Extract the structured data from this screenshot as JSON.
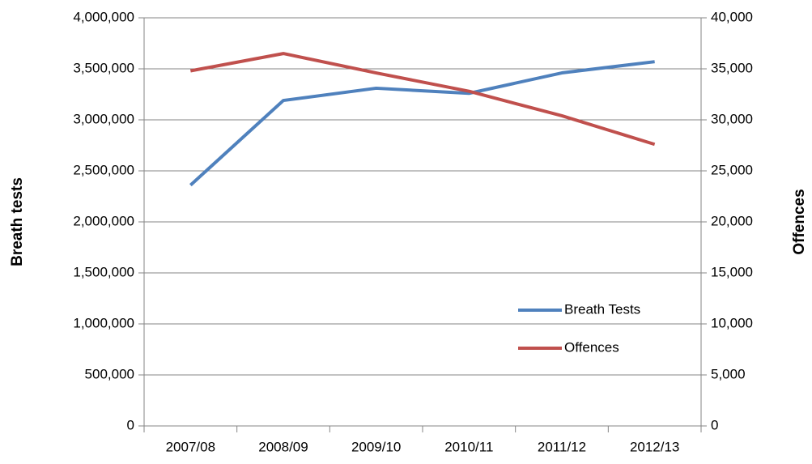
{
  "chart_data": {
    "type": "line",
    "categories": [
      "2007/08",
      "2008/09",
      "2009/10",
      "2010/11",
      "2011/12",
      "2012/13"
    ],
    "series": [
      {
        "name": "Breath Tests",
        "color": "#4f81bd",
        "values": [
          2360000,
          3190000,
          3310000,
          3260000,
          3460000,
          3570000
        ]
      },
      {
        "name": "Offences",
        "color": "#c0504d",
        "axis": "y2",
        "values": [
          34800,
          36500,
          34600,
          32800,
          30400,
          27600
        ]
      }
    ],
    "y_label": "Breath tests",
    "y2_label": "Offences",
    "ylim": [
      0,
      4000000
    ],
    "yticks": [
      0,
      {
        "value": 500000,
        "label": "500,000"
      },
      {
        "value": 1000000,
        "label": "1,000,000"
      },
      {
        "value": 1500000,
        "label": "1,500,000"
      },
      {
        "value": 2000000,
        "label": "2,000,000"
      },
      {
        "value": 2500000,
        "label": "2,500,000"
      },
      {
        "value": 3000000,
        "label": "3,000,000"
      },
      {
        "value": 3500000,
        "label": "3,500,000"
      },
      {
        "value": 4000000,
        "label": "4,000,000"
      }
    ],
    "y2lim": [
      0,
      40000
    ],
    "y2ticks": [
      0,
      {
        "value": 5000,
        "label": "5,000"
      },
      {
        "value": 10000,
        "label": "10,000"
      },
      {
        "value": 15000,
        "label": "15,000"
      },
      {
        "value": 20000,
        "label": "20,000"
      },
      {
        "value": 25000,
        "label": "25,000"
      },
      {
        "value": 30000,
        "label": "30,000"
      },
      {
        "value": 35000,
        "label": "35,000"
      },
      {
        "value": 40000,
        "label": "40,000"
      }
    ],
    "grid": true,
    "legend": "right"
  }
}
